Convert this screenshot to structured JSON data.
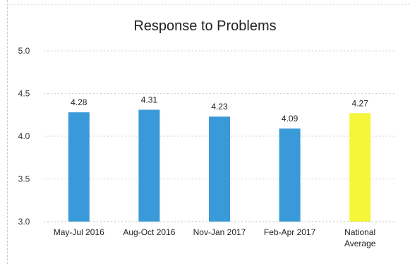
{
  "chart_data": {
    "type": "bar",
    "title": "Response to Problems",
    "categories": [
      "May-Jul 2016",
      "Aug-Oct 2016",
      "Nov-Jan 2017",
      "Feb-Apr 2017",
      "National Average"
    ],
    "category_lines": [
      [
        "May-Jul 2016"
      ],
      [
        "Aug-Oct 2016"
      ],
      [
        "Nov-Jan 2017"
      ],
      [
        "Feb-Apr 2017"
      ],
      [
        "National",
        "Average"
      ]
    ],
    "values": [
      4.28,
      4.31,
      4.23,
      4.09,
      4.27
    ],
    "data_labels": [
      "4.28",
      "4.31",
      "4.23",
      "4.09",
      "4.27"
    ],
    "bar_colors": [
      "#3a9ad9",
      "#3a9ad9",
      "#3a9ad9",
      "#3a9ad9",
      "#f5f53a"
    ],
    "ylim": [
      3.0,
      5.0
    ],
    "yticks": [
      "3.0",
      "3.5",
      "4.0",
      "4.5",
      "5.0"
    ],
    "grid": true,
    "legend": false
  }
}
